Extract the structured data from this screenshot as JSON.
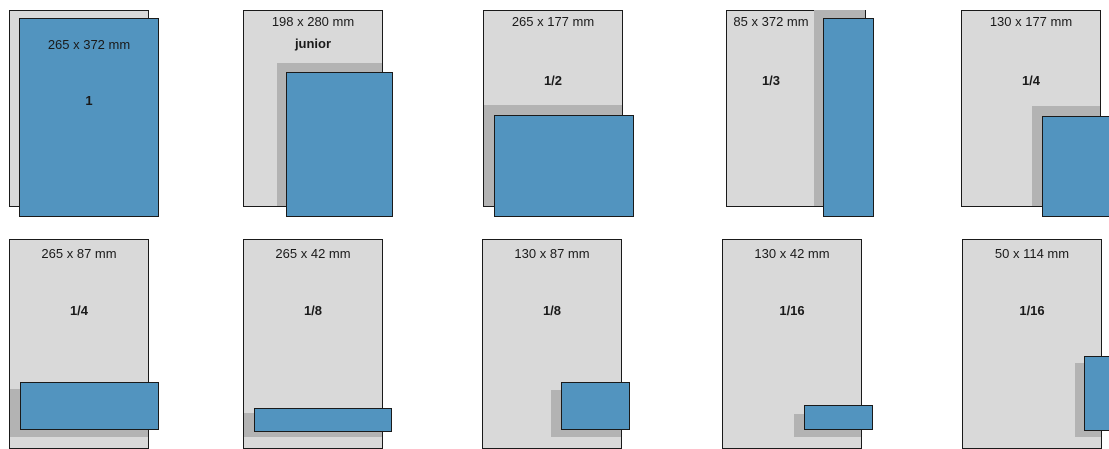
{
  "colors": {
    "page": "#d9d9d9",
    "shadow": "#b3b3b3",
    "ad": "#5294bf",
    "border": "#1a1a1a"
  },
  "formats": [
    {
      "size": "265 x 372 mm",
      "fraction": "1"
    },
    {
      "size": "198 x 280 mm",
      "fraction": "junior"
    },
    {
      "size": "265 x 177 mm",
      "fraction": "1/2"
    },
    {
      "size": "85 x 372 mm",
      "fraction": "1/3"
    },
    {
      "size": "130 x 177 mm",
      "fraction": "1/4"
    },
    {
      "size": "265 x 87 mm",
      "fraction": "1/4"
    },
    {
      "size": "265 x 42 mm",
      "fraction": "1/8"
    },
    {
      "size": "130 x 87 mm",
      "fraction": "1/8"
    },
    {
      "size": "130 x 42 mm",
      "fraction": "1/16"
    },
    {
      "size": "50 x 114 mm",
      "fraction": "1/16"
    }
  ]
}
